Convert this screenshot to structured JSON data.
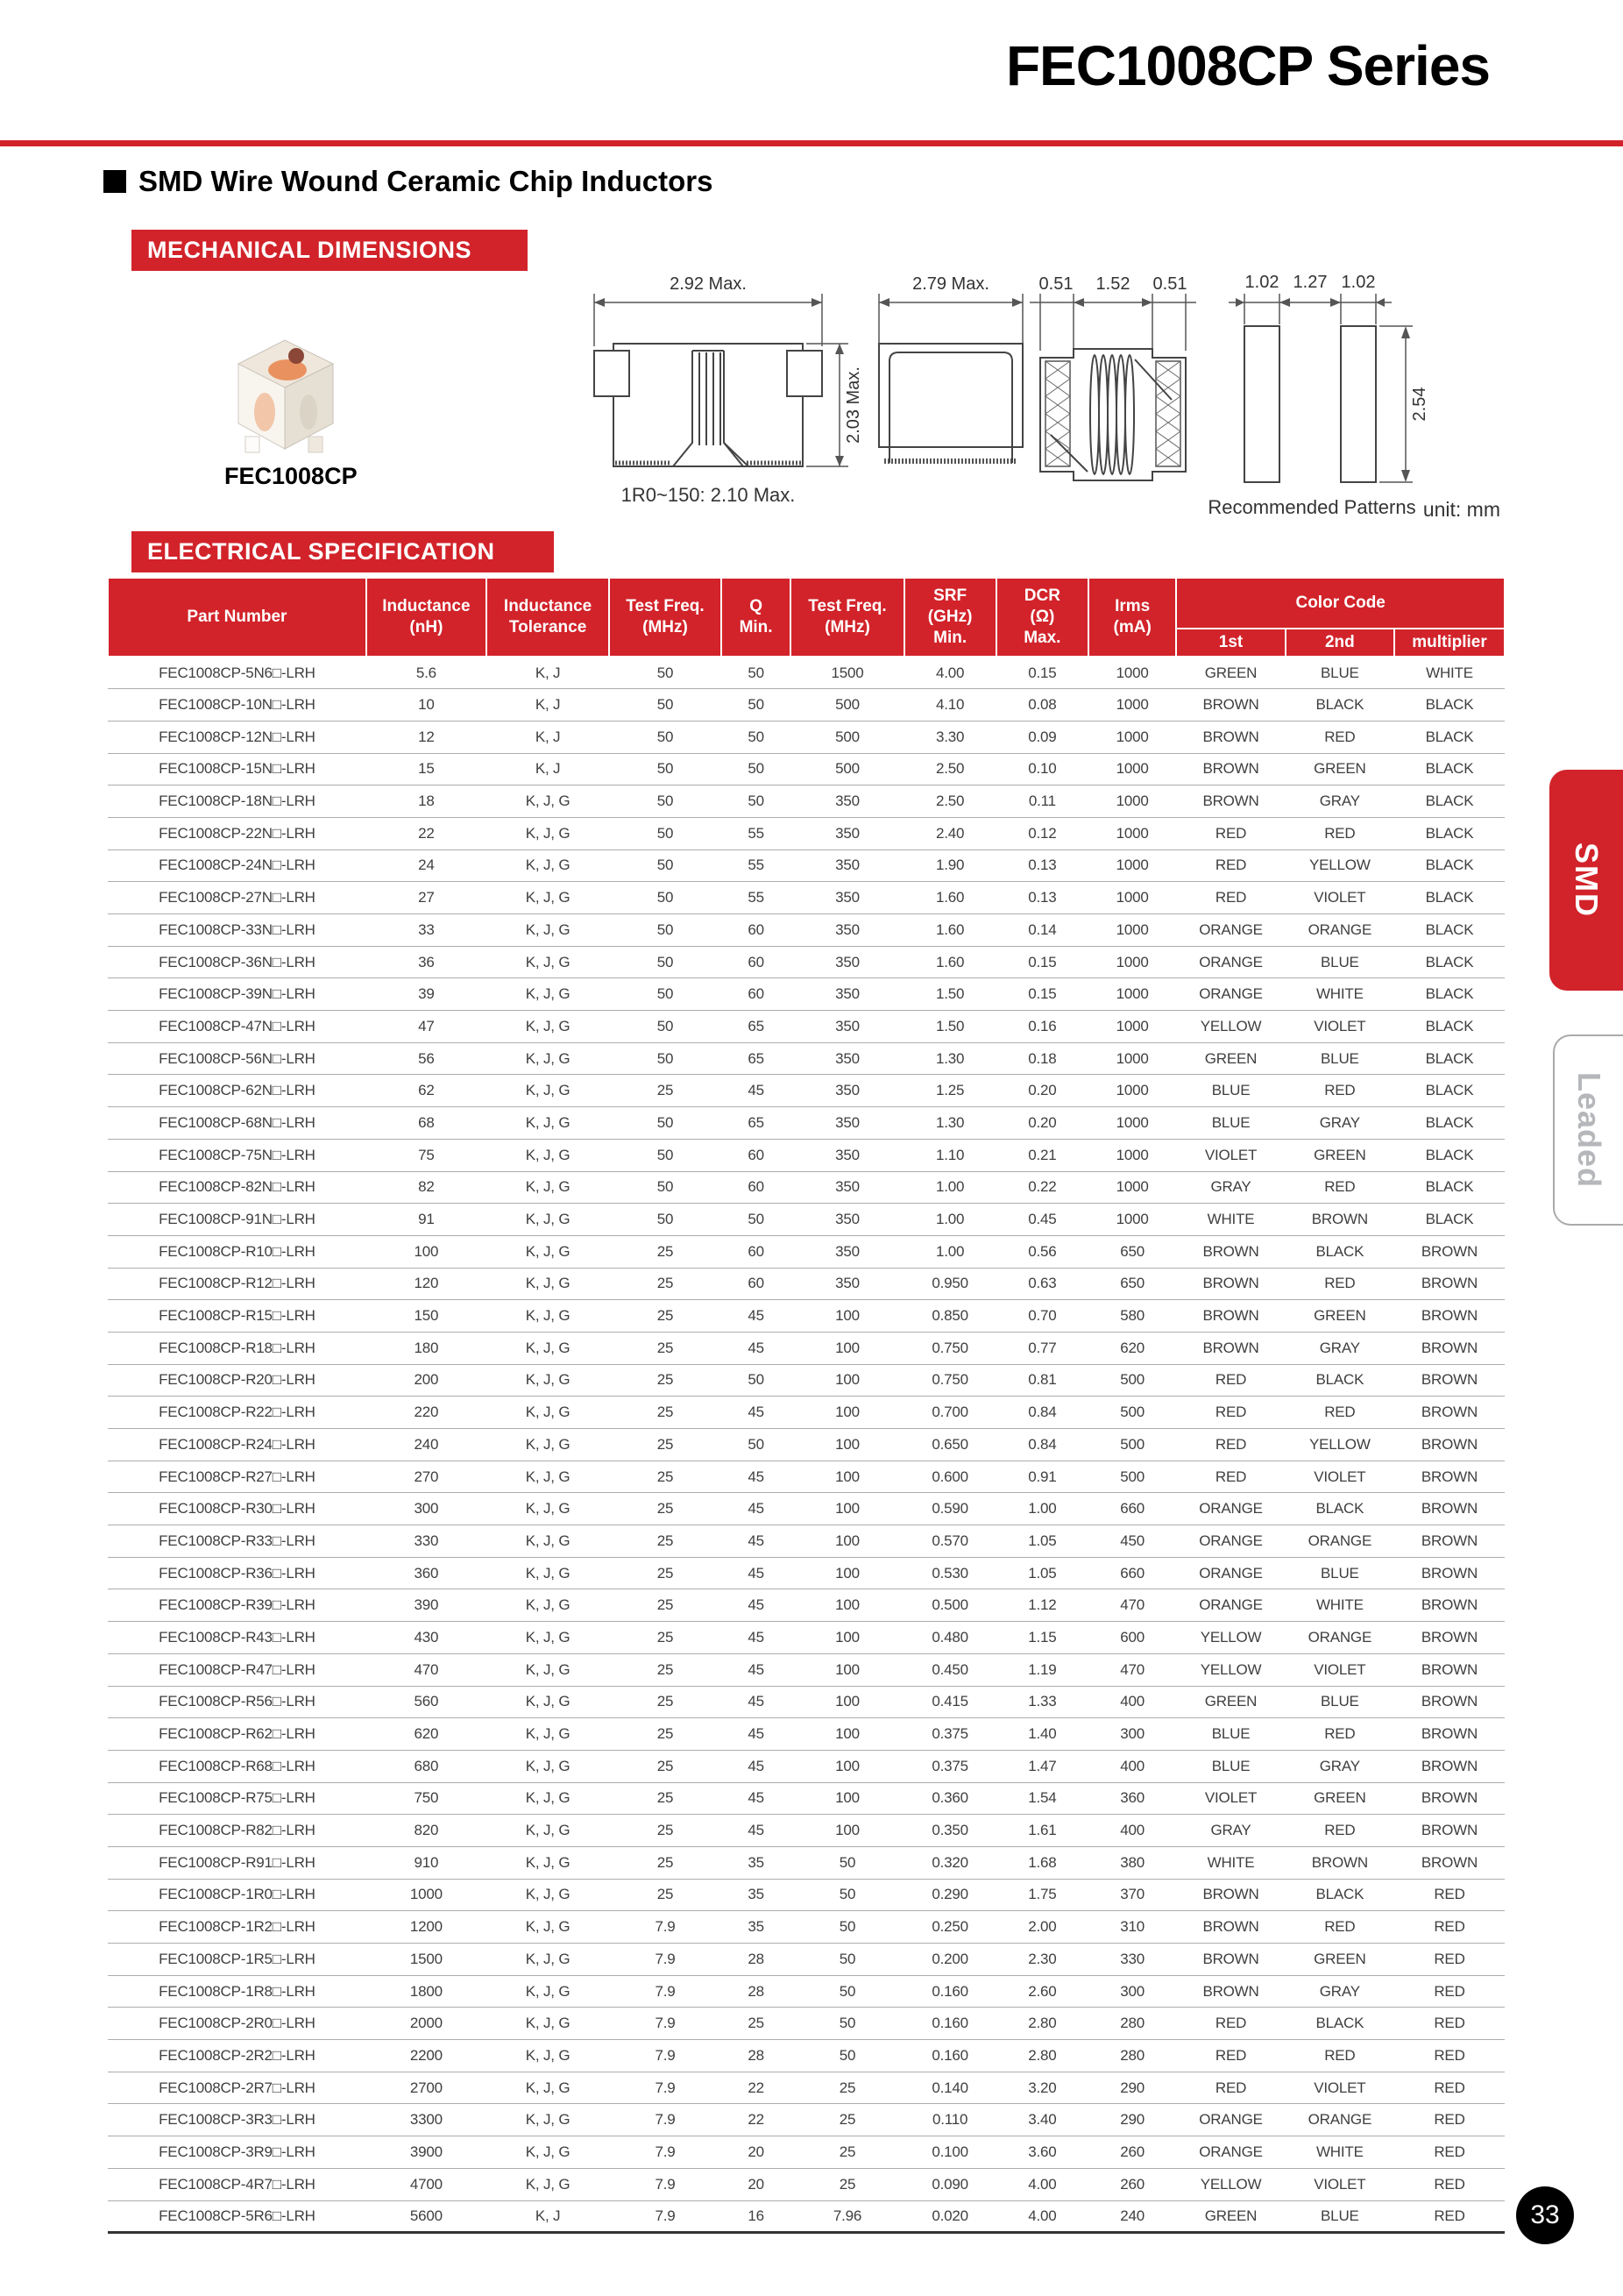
{
  "page": {
    "title": "FEC1008CP Series",
    "section_heading": "SMD Wire Wound Ceramic Chip Inductors",
    "unit_note": "unit: mm",
    "page_number": "33",
    "accent_color": "#d2232a",
    "side_tabs": {
      "smd": "SMD",
      "leaded": "Leaded"
    }
  },
  "mechanical": {
    "banner": "MECHANICAL DIMENSIONS",
    "part_label": "FEC1008CP",
    "front_view": {
      "width_dim": "2.92 Max.",
      "height_dim": "2.03 Max.",
      "note": "1R0~150: 2.10 Max."
    },
    "top_view": {
      "width_dim": "2.79 Max."
    },
    "section_view": {
      "d1": "0.51",
      "d2": "1.52",
      "d3": "0.51"
    },
    "patterns": {
      "d1": "1.02",
      "d2": "1.27",
      "d3": "1.02",
      "height_dim": "2.54",
      "caption": "Recommended Patterns"
    }
  },
  "electrical": {
    "banner": "ELECTRICAL SPECIFICATION",
    "header": {
      "part_number": "Part Number",
      "inductance": "Inductance\n(nH)",
      "tolerance": "Inductance\nTolerance",
      "test_freq1": "Test Freq.\n(MHz)",
      "q_min": "Q\nMin.",
      "test_freq2": "Test Freq.\n(MHz)",
      "srf": "SRF\n(GHz)\nMin.",
      "dcr": "DCR\n(Ω)\nMax.",
      "irms": "Irms\n(mA)",
      "color_code": "Color Code",
      "first": "1st",
      "second": "2nd",
      "multiplier": "multiplier"
    },
    "column_keys": [
      "part-number",
      "inductance-nh",
      "tolerance",
      "test-freq-mhz",
      "q-min",
      "test-freq2-mhz",
      "srf-ghz-min",
      "dcr-ohm-max",
      "irms-ma",
      "color-1st",
      "color-2nd",
      "color-multiplier"
    ],
    "rows": [
      [
        "FEC1008CP-5N6□-LRH",
        "5.6",
        "K, J",
        "50",
        "50",
        "1500",
        "4.00",
        "0.15",
        "1000",
        "GREEN",
        "BLUE",
        "WHITE"
      ],
      [
        "FEC1008CP-10N□-LRH",
        "10",
        "K, J",
        "50",
        "50",
        "500",
        "4.10",
        "0.08",
        "1000",
        "BROWN",
        "BLACK",
        "BLACK"
      ],
      [
        "FEC1008CP-12N□-LRH",
        "12",
        "K, J",
        "50",
        "50",
        "500",
        "3.30",
        "0.09",
        "1000",
        "BROWN",
        "RED",
        "BLACK"
      ],
      [
        "FEC1008CP-15N□-LRH",
        "15",
        "K, J",
        "50",
        "50",
        "500",
        "2.50",
        "0.10",
        "1000",
        "BROWN",
        "GREEN",
        "BLACK"
      ],
      [
        "FEC1008CP-18N□-LRH",
        "18",
        "K, J, G",
        "50",
        "50",
        "350",
        "2.50",
        "0.11",
        "1000",
        "BROWN",
        "GRAY",
        "BLACK"
      ],
      [
        "FEC1008CP-22N□-LRH",
        "22",
        "K, J, G",
        "50",
        "55",
        "350",
        "2.40",
        "0.12",
        "1000",
        "RED",
        "RED",
        "BLACK"
      ],
      [
        "FEC1008CP-24N□-LRH",
        "24",
        "K, J, G",
        "50",
        "55",
        "350",
        "1.90",
        "0.13",
        "1000",
        "RED",
        "YELLOW",
        "BLACK"
      ],
      [
        "FEC1008CP-27N□-LRH",
        "27",
        "K, J, G",
        "50",
        "55",
        "350",
        "1.60",
        "0.13",
        "1000",
        "RED",
        "VIOLET",
        "BLACK"
      ],
      [
        "FEC1008CP-33N□-LRH",
        "33",
        "K, J, G",
        "50",
        "60",
        "350",
        "1.60",
        "0.14",
        "1000",
        "ORANGE",
        "ORANGE",
        "BLACK"
      ],
      [
        "FEC1008CP-36N□-LRH",
        "36",
        "K, J, G",
        "50",
        "60",
        "350",
        "1.60",
        "0.15",
        "1000",
        "ORANGE",
        "BLUE",
        "BLACK"
      ],
      [
        "FEC1008CP-39N□-LRH",
        "39",
        "K, J, G",
        "50",
        "60",
        "350",
        "1.50",
        "0.15",
        "1000",
        "ORANGE",
        "WHITE",
        "BLACK"
      ],
      [
        "FEC1008CP-47N□-LRH",
        "47",
        "K, J, G",
        "50",
        "65",
        "350",
        "1.50",
        "0.16",
        "1000",
        "YELLOW",
        "VIOLET",
        "BLACK"
      ],
      [
        "FEC1008CP-56N□-LRH",
        "56",
        "K, J, G",
        "50",
        "65",
        "350",
        "1.30",
        "0.18",
        "1000",
        "GREEN",
        "BLUE",
        "BLACK"
      ],
      [
        "FEC1008CP-62N□-LRH",
        "62",
        "K, J, G",
        "25",
        "45",
        "350",
        "1.25",
        "0.20",
        "1000",
        "BLUE",
        "RED",
        "BLACK"
      ],
      [
        "FEC1008CP-68N□-LRH",
        "68",
        "K, J, G",
        "50",
        "65",
        "350",
        "1.30",
        "0.20",
        "1000",
        "BLUE",
        "GRAY",
        "BLACK"
      ],
      [
        "FEC1008CP-75N□-LRH",
        "75",
        "K, J, G",
        "50",
        "60",
        "350",
        "1.10",
        "0.21",
        "1000",
        "VIOLET",
        "GREEN",
        "BLACK"
      ],
      [
        "FEC1008CP-82N□-LRH",
        "82",
        "K, J, G",
        "50",
        "60",
        "350",
        "1.00",
        "0.22",
        "1000",
        "GRAY",
        "RED",
        "BLACK"
      ],
      [
        "FEC1008CP-91N□-LRH",
        "91",
        "K, J, G",
        "50",
        "50",
        "350",
        "1.00",
        "0.45",
        "1000",
        "WHITE",
        "BROWN",
        "BLACK"
      ],
      [
        "FEC1008CP-R10□-LRH",
        "100",
        "K, J, G",
        "25",
        "60",
        "350",
        "1.00",
        "0.56",
        "650",
        "BROWN",
        "BLACK",
        "BROWN"
      ],
      [
        "FEC1008CP-R12□-LRH",
        "120",
        "K, J, G",
        "25",
        "60",
        "350",
        "0.950",
        "0.63",
        "650",
        "BROWN",
        "RED",
        "BROWN"
      ],
      [
        "FEC1008CP-R15□-LRH",
        "150",
        "K, J, G",
        "25",
        "45",
        "100",
        "0.850",
        "0.70",
        "580",
        "BROWN",
        "GREEN",
        "BROWN"
      ],
      [
        "FEC1008CP-R18□-LRH",
        "180",
        "K, J, G",
        "25",
        "45",
        "100",
        "0.750",
        "0.77",
        "620",
        "BROWN",
        "GRAY",
        "BROWN"
      ],
      [
        "FEC1008CP-R20□-LRH",
        "200",
        "K, J, G",
        "25",
        "50",
        "100",
        "0.750",
        "0.81",
        "500",
        "RED",
        "BLACK",
        "BROWN"
      ],
      [
        "FEC1008CP-R22□-LRH",
        "220",
        "K, J, G",
        "25",
        "45",
        "100",
        "0.700",
        "0.84",
        "500",
        "RED",
        "RED",
        "BROWN"
      ],
      [
        "FEC1008CP-R24□-LRH",
        "240",
        "K, J, G",
        "25",
        "50",
        "100",
        "0.650",
        "0.84",
        "500",
        "RED",
        "YELLOW",
        "BROWN"
      ],
      [
        "FEC1008CP-R27□-LRH",
        "270",
        "K, J, G",
        "25",
        "45",
        "100",
        "0.600",
        "0.91",
        "500",
        "RED",
        "VIOLET",
        "BROWN"
      ],
      [
        "FEC1008CP-R30□-LRH",
        "300",
        "K, J, G",
        "25",
        "45",
        "100",
        "0.590",
        "1.00",
        "660",
        "ORANGE",
        "BLACK",
        "BROWN"
      ],
      [
        "FEC1008CP-R33□-LRH",
        "330",
        "K, J, G",
        "25",
        "45",
        "100",
        "0.570",
        "1.05",
        "450",
        "ORANGE",
        "ORANGE",
        "BROWN"
      ],
      [
        "FEC1008CP-R36□-LRH",
        "360",
        "K, J, G",
        "25",
        "45",
        "100",
        "0.530",
        "1.05",
        "660",
        "ORANGE",
        "BLUE",
        "BROWN"
      ],
      [
        "FEC1008CP-R39□-LRH",
        "390",
        "K, J, G",
        "25",
        "45",
        "100",
        "0.500",
        "1.12",
        "470",
        "ORANGE",
        "WHITE",
        "BROWN"
      ],
      [
        "FEC1008CP-R43□-LRH",
        "430",
        "K, J, G",
        "25",
        "45",
        "100",
        "0.480",
        "1.15",
        "600",
        "YELLOW",
        "ORANGE",
        "BROWN"
      ],
      [
        "FEC1008CP-R47□-LRH",
        "470",
        "K, J, G",
        "25",
        "45",
        "100",
        "0.450",
        "1.19",
        "470",
        "YELLOW",
        "VIOLET",
        "BROWN"
      ],
      [
        "FEC1008CP-R56□-LRH",
        "560",
        "K, J, G",
        "25",
        "45",
        "100",
        "0.415",
        "1.33",
        "400",
        "GREEN",
        "BLUE",
        "BROWN"
      ],
      [
        "FEC1008CP-R62□-LRH",
        "620",
        "K, J, G",
        "25",
        "45",
        "100",
        "0.375",
        "1.40",
        "300",
        "BLUE",
        "RED",
        "BROWN"
      ],
      [
        "FEC1008CP-R68□-LRH",
        "680",
        "K, J, G",
        "25",
        "45",
        "100",
        "0.375",
        "1.47",
        "400",
        "BLUE",
        "GRAY",
        "BROWN"
      ],
      [
        "FEC1008CP-R75□-LRH",
        "750",
        "K, J, G",
        "25",
        "45",
        "100",
        "0.360",
        "1.54",
        "360",
        "VIOLET",
        "GREEN",
        "BROWN"
      ],
      [
        "FEC1008CP-R82□-LRH",
        "820",
        "K, J, G",
        "25",
        "45",
        "100",
        "0.350",
        "1.61",
        "400",
        "GRAY",
        "RED",
        "BROWN"
      ],
      [
        "FEC1008CP-R91□-LRH",
        "910",
        "K, J, G",
        "25",
        "35",
        "50",
        "0.320",
        "1.68",
        "380",
        "WHITE",
        "BROWN",
        "BROWN"
      ],
      [
        "FEC1008CP-1R0□-LRH",
        "1000",
        "K, J, G",
        "25",
        "35",
        "50",
        "0.290",
        "1.75",
        "370",
        "BROWN",
        "BLACK",
        "RED"
      ],
      [
        "FEC1008CP-1R2□-LRH",
        "1200",
        "K, J, G",
        "7.9",
        "35",
        "50",
        "0.250",
        "2.00",
        "310",
        "BROWN",
        "RED",
        "RED"
      ],
      [
        "FEC1008CP-1R5□-LRH",
        "1500",
        "K, J, G",
        "7.9",
        "28",
        "50",
        "0.200",
        "2.30",
        "330",
        "BROWN",
        "GREEN",
        "RED"
      ],
      [
        "FEC1008CP-1R8□-LRH",
        "1800",
        "K, J, G",
        "7.9",
        "28",
        "50",
        "0.160",
        "2.60",
        "300",
        "BROWN",
        "GRAY",
        "RED"
      ],
      [
        "FEC1008CP-2R0□-LRH",
        "2000",
        "K, J, G",
        "7.9",
        "25",
        "50",
        "0.160",
        "2.80",
        "280",
        "RED",
        "BLACK",
        "RED"
      ],
      [
        "FEC1008CP-2R2□-LRH",
        "2200",
        "K, J, G",
        "7.9",
        "28",
        "50",
        "0.160",
        "2.80",
        "280",
        "RED",
        "RED",
        "RED"
      ],
      [
        "FEC1008CP-2R7□-LRH",
        "2700",
        "K, J, G",
        "7.9",
        "22",
        "25",
        "0.140",
        "3.20",
        "290",
        "RED",
        "VIOLET",
        "RED"
      ],
      [
        "FEC1008CP-3R3□-LRH",
        "3300",
        "K, J, G",
        "7.9",
        "22",
        "25",
        "0.110",
        "3.40",
        "290",
        "ORANGE",
        "ORANGE",
        "RED"
      ],
      [
        "FEC1008CP-3R9□-LRH",
        "3900",
        "K, J, G",
        "7.9",
        "20",
        "25",
        "0.100",
        "3.60",
        "260",
        "ORANGE",
        "WHITE",
        "RED"
      ],
      [
        "FEC1008CP-4R7□-LRH",
        "4700",
        "K, J, G",
        "7.9",
        "20",
        "25",
        "0.090",
        "4.00",
        "260",
        "YELLOW",
        "VIOLET",
        "RED"
      ],
      [
        "FEC1008CP-5R6□-LRH",
        "5600",
        "K, J",
        "7.9",
        "16",
        "7.96",
        "0.020",
        "4.00",
        "240",
        "GREEN",
        "BLUE",
        "RED"
      ]
    ]
  }
}
